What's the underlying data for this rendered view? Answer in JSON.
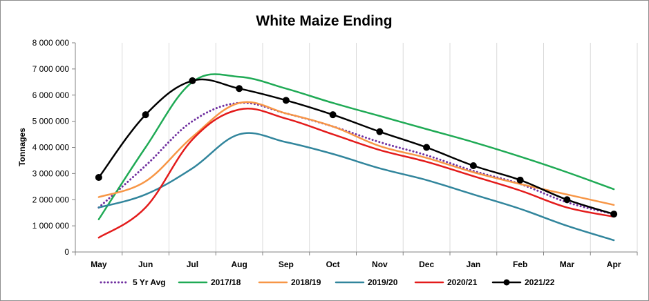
{
  "chart_data": {
    "type": "line",
    "title": "White Maize Ending",
    "xlabel": "",
    "ylabel": "Tonnages",
    "ylim": [
      0,
      8000000
    ],
    "yticks": [
      0,
      1000000,
      2000000,
      3000000,
      4000000,
      5000000,
      6000000,
      7000000,
      8000000
    ],
    "ytick_labels": [
      "0",
      "1 000 000",
      "2 000 000",
      "3 000 000",
      "4 000 000",
      "5 000 000",
      "6 000 000",
      "7 000 000",
      "8 000 000"
    ],
    "categories": [
      "May",
      "Jun",
      "Jul",
      "Aug",
      "Sep",
      "Oct",
      "Nov",
      "Dec",
      "Jan",
      "Feb",
      "Mar",
      "Apr"
    ],
    "grid": "vertical",
    "legend_position": "bottom",
    "series": [
      {
        "name": "5 Yr Avg",
        "color": "#7030a0",
        "style": "dotted",
        "markers": false,
        "values": [
          1700000,
          3300000,
          5000000,
          5700000,
          5300000,
          4800000,
          4200000,
          3700000,
          3100000,
          2600000,
          1900000,
          1450000
        ]
      },
      {
        "name": "2017/18",
        "color": "#1faa55",
        "style": "solid",
        "markers": false,
        "values": [
          1250000,
          4000000,
          6500000,
          6700000,
          6250000,
          5700000,
          5200000,
          4700000,
          4200000,
          3650000,
          3050000,
          2400000
        ]
      },
      {
        "name": "2018/19",
        "color": "#f79646",
        "style": "solid",
        "markers": false,
        "values": [
          2100000,
          2700000,
          4400000,
          5700000,
          5300000,
          4800000,
          4050000,
          3600000,
          3050000,
          2600000,
          2200000,
          1800000
        ]
      },
      {
        "name": "2019/20",
        "color": "#31859c",
        "style": "solid",
        "markers": false,
        "values": [
          1700000,
          2200000,
          3200000,
          4500000,
          4200000,
          3750000,
          3200000,
          2750000,
          2200000,
          1650000,
          1000000,
          450000
        ]
      },
      {
        "name": "2020/21",
        "color": "#e31b1b",
        "style": "solid",
        "markers": false,
        "values": [
          550000,
          1700000,
          4300000,
          5450000,
          5100000,
          4500000,
          3900000,
          3450000,
          2900000,
          2350000,
          1700000,
          1350000
        ]
      },
      {
        "name": "2021/22",
        "color": "#000000",
        "style": "solid",
        "markers": true,
        "values": [
          2850000,
          5250000,
          6550000,
          6250000,
          5800000,
          5250000,
          4600000,
          4000000,
          3300000,
          2750000,
          2000000,
          1450000
        ]
      }
    ]
  }
}
